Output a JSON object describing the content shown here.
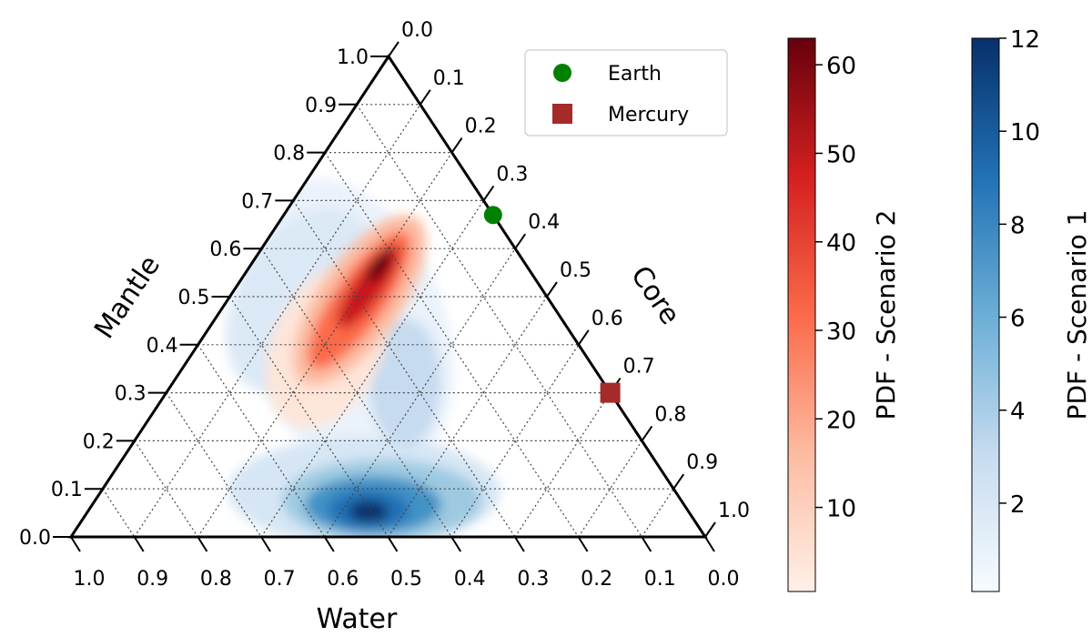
{
  "chart_data": {
    "type": "ternary-density",
    "axes": {
      "bottom": {
        "label": "Water",
        "ticks": [
          "1.0",
          "0.9",
          "0.8",
          "0.7",
          "0.6",
          "0.5",
          "0.4",
          "0.3",
          "0.2",
          "0.1",
          "0.0"
        ]
      },
      "left": {
        "label": "Mantle",
        "ticks": [
          "0.0",
          "0.1",
          "0.2",
          "0.3",
          "0.4",
          "0.5",
          "0.6",
          "0.7",
          "0.8",
          "0.9",
          "1.0"
        ]
      },
      "right": {
        "label": "Core",
        "ticks": [
          "0.0",
          "0.1",
          "0.2",
          "0.3",
          "0.4",
          "0.5",
          "0.6",
          "0.7",
          "0.8",
          "0.9",
          "1.0"
        ]
      }
    },
    "grid": true,
    "legend": {
      "position": "top-right",
      "entries": [
        {
          "name": "Earth",
          "marker": "circle",
          "color": "#008000"
        },
        {
          "name": "Mercury",
          "marker": "square",
          "color": "#a52a2a"
        }
      ]
    },
    "points": [
      {
        "name": "Earth",
        "core": 0.33,
        "mantle": 0.67,
        "water": 0.0
      },
      {
        "name": "Mercury",
        "core": 0.7,
        "mantle": 0.3,
        "water": 0.0
      }
    ],
    "series": [
      {
        "name": "Scenario 1",
        "colormap": "Blues",
        "peak": {
          "core": 0.45,
          "mantle": 0.05,
          "water": 0.5
        },
        "vmin": 0,
        "vmax": 12
      },
      {
        "name": "Scenario 2",
        "colormap": "Reds",
        "peak": {
          "core": 0.08,
          "mantle": 0.57,
          "water": 0.35
        },
        "vmin": 0,
        "vmax": 63
      }
    ],
    "colorbars": [
      {
        "label": "PDF - Scenario 2",
        "colormap": "Reds",
        "ticks": [
          10,
          20,
          30,
          40,
          50,
          60
        ],
        "range": [
          0.5,
          63
        ]
      },
      {
        "label": "PDF - Scenario 1",
        "colormap": "Blues",
        "ticks": [
          2,
          4,
          6,
          8,
          10,
          12
        ],
        "range": [
          0.1,
          12
        ]
      }
    ]
  }
}
